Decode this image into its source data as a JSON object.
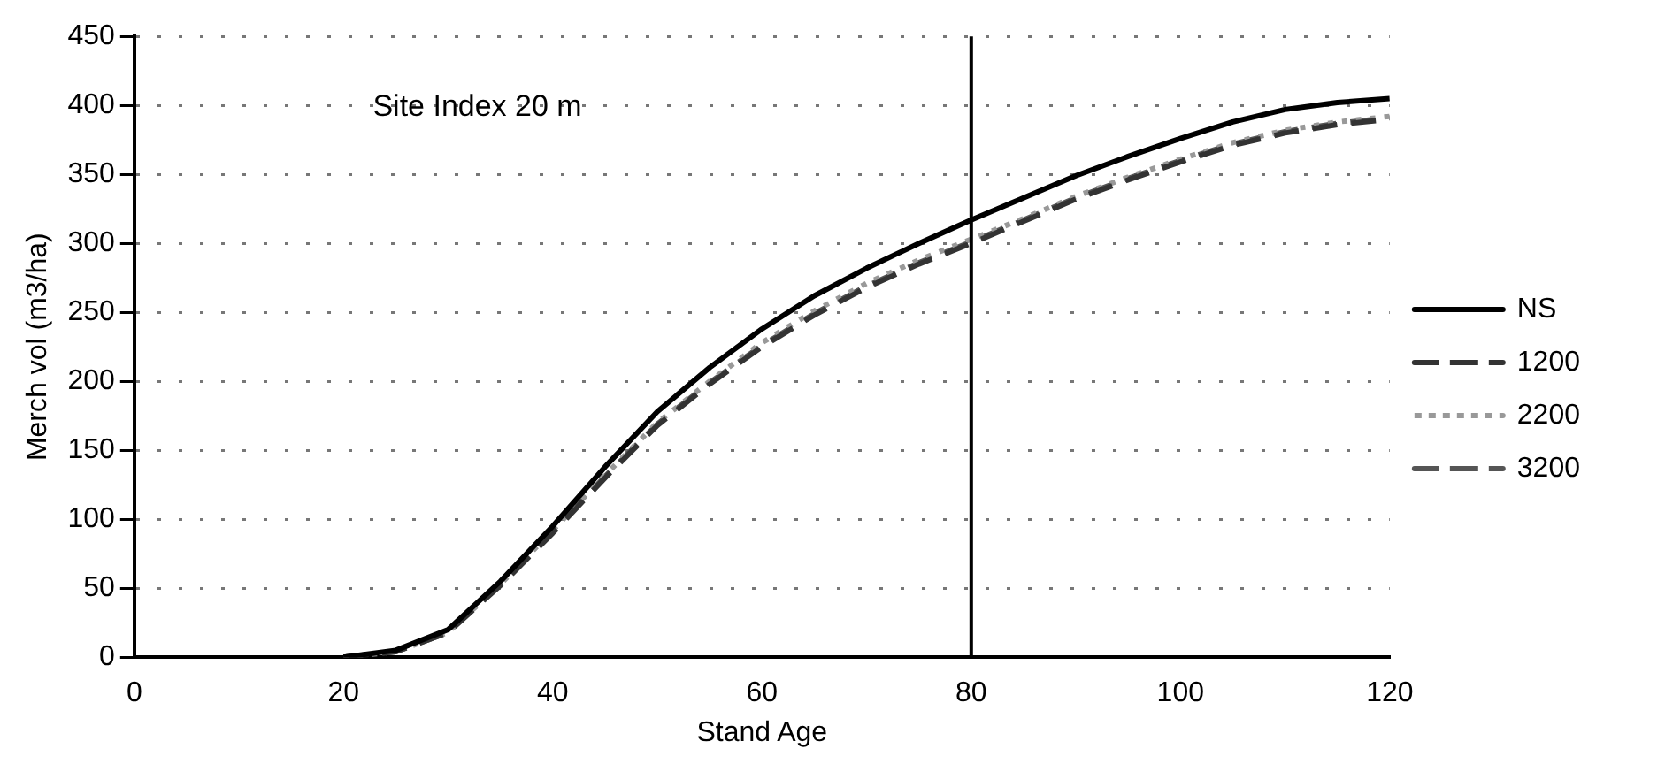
{
  "chart_data": {
    "type": "line",
    "xlabel": "Stand Age",
    "ylabel": "Merch vol (m3/ha)",
    "annotations": [
      "Site Index 20 m"
    ],
    "xlim": [
      0,
      120
    ],
    "xticks": [
      0,
      20,
      40,
      60,
      80,
      100,
      120
    ],
    "ylim": [
      0,
      450
    ],
    "yticks": [
      0,
      50,
      100,
      150,
      200,
      250,
      300,
      350,
      400,
      450
    ],
    "grid": "y",
    "legend": "right",
    "marker": "none",
    "ref_lines": [
      {
        "axis": "x",
        "value": 80,
        "color": "#000000"
      }
    ],
    "series": [
      {
        "name": "NS",
        "color": "#000000",
        "line_style": "solid",
        "x": [
          20,
          25,
          30,
          35,
          40,
          45,
          50,
          55,
          60,
          65,
          70,
          75,
          80,
          85,
          90,
          95,
          100,
          105,
          110,
          115,
          120
        ],
        "values": [
          0,
          5,
          20,
          55,
          95,
          138,
          178,
          210,
          238,
          262,
          282,
          300,
          317,
          333,
          349,
          363,
          376,
          388,
          397,
          402,
          405
        ]
      },
      {
        "name": "1200",
        "color": "#333333",
        "line_style": "dashed",
        "x": [
          20,
          25,
          30,
          35,
          40,
          45,
          50,
          55,
          60,
          65,
          70,
          75,
          80,
          85,
          90,
          95,
          100,
          105,
          110,
          115,
          120
        ],
        "values": [
          0,
          4,
          18,
          52,
          90,
          130,
          168,
          198,
          225,
          248,
          268,
          285,
          300,
          316,
          332,
          346,
          359,
          371,
          380,
          386,
          390
        ]
      },
      {
        "name": "2200",
        "color": "#999999",
        "line_style": "dotted",
        "x": [
          20,
          25,
          30,
          35,
          40,
          45,
          50,
          55,
          60,
          65,
          70,
          75,
          80,
          85,
          90,
          95,
          100,
          105,
          110,
          115,
          120
        ],
        "values": [
          0,
          4,
          18,
          53,
          92,
          132,
          170,
          200,
          228,
          251,
          271,
          288,
          303,
          318,
          334,
          348,
          361,
          373,
          382,
          388,
          392
        ]
      },
      {
        "name": "3200",
        "color": "#555555",
        "line_style": "dashed",
        "x": [
          20,
          25,
          30,
          35,
          40,
          45,
          50,
          55,
          60,
          65,
          70,
          75,
          80,
          85,
          90,
          95,
          100,
          105,
          110,
          115,
          120
        ],
        "values": [
          0,
          4,
          18,
          53,
          91,
          131,
          169,
          199,
          226,
          249,
          269,
          286,
          301,
          317,
          333,
          347,
          360,
          372,
          381,
          387,
          391
        ]
      }
    ]
  }
}
